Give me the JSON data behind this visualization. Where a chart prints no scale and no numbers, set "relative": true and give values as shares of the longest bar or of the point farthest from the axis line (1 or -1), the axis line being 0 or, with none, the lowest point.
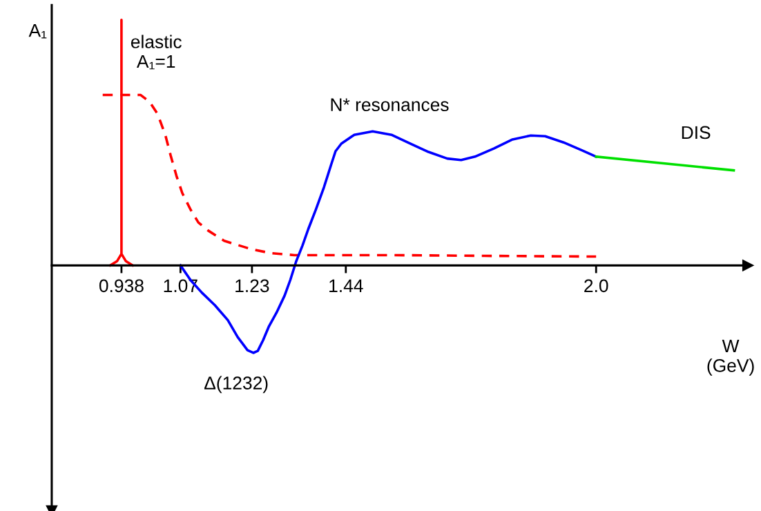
{
  "chart_data": {
    "type": "line",
    "relative": true,
    "xlabel": "W\n(GeV)",
    "ylabel": "A₁",
    "xlim": [
      0.782,
      2.34
    ],
    "xticks": [
      0.938,
      1.07,
      1.23,
      1.44,
      {
        "value": 2.0,
        "label": "2.0"
      }
    ],
    "tick_labels": "x",
    "grid": false,
    "marker": "none",
    "annotations": [
      "elastic\nA₁=1",
      "Δ(1232)",
      "N* resonances",
      "DIS"
    ],
    "series": [
      {
        "color": "#ff0000",
        "line_style": "solid",
        "x": [
          0.913,
          0.928,
          0.938,
          0.938,
          0.938,
          0.948,
          0.963
        ],
        "values": [
          0,
          0.017,
          0.047,
          1,
          0.047,
          0.017,
          0
        ]
      },
      {
        "color": "#ff0000",
        "line_style": "dashed",
        "x": [
          0.896,
          0.981,
          1.001,
          1.019,
          1.036,
          1.048,
          1.061,
          1.074,
          1.093,
          1.11,
          1.132,
          1.168,
          1.227,
          1.272,
          1.325,
          1.395,
          1.542,
          1.75,
          2.0
        ],
        "values": [
          0.694,
          0.694,
          0.666,
          0.616,
          0.532,
          0.448,
          0.365,
          0.295,
          0.226,
          0.175,
          0.142,
          0.1,
          0.067,
          0.05,
          0.042,
          0.042,
          0.042,
          0.039,
          0.036
        ]
      },
      {
        "color": "#0000ff",
        "line_style": "solid",
        "x": [
          1.07,
          1.093,
          1.118,
          1.147,
          1.176,
          1.198,
          1.22,
          1.233,
          1.243,
          1.255,
          1.268,
          1.285,
          1.303,
          1.316,
          1.329,
          1.343,
          1.356,
          1.373,
          1.391,
          1.408,
          1.417,
          1.43,
          1.459,
          1.5,
          1.542,
          1.584,
          1.625,
          1.667,
          1.698,
          1.729,
          1.771,
          1.813,
          1.854,
          1.886,
          1.927,
          1.969,
          2.0
        ],
        "values": [
          0,
          -0.061,
          -0.111,
          -0.162,
          -0.223,
          -0.292,
          -0.345,
          -0.356,
          -0.348,
          -0.304,
          -0.248,
          -0.192,
          -0.123,
          -0.058,
          0.017,
          0.081,
          0.148,
          0.228,
          0.318,
          0.415,
          0.465,
          0.496,
          0.532,
          0.546,
          0.532,
          0.496,
          0.462,
          0.435,
          0.429,
          0.443,
          0.476,
          0.513,
          0.529,
          0.526,
          0.501,
          0.468,
          0.443
        ]
      },
      {
        "color": "#00e000",
        "line_style": "solid",
        "x": [
          2.0,
          2.308
        ],
        "values": [
          0.443,
          0.387
        ]
      }
    ]
  }
}
